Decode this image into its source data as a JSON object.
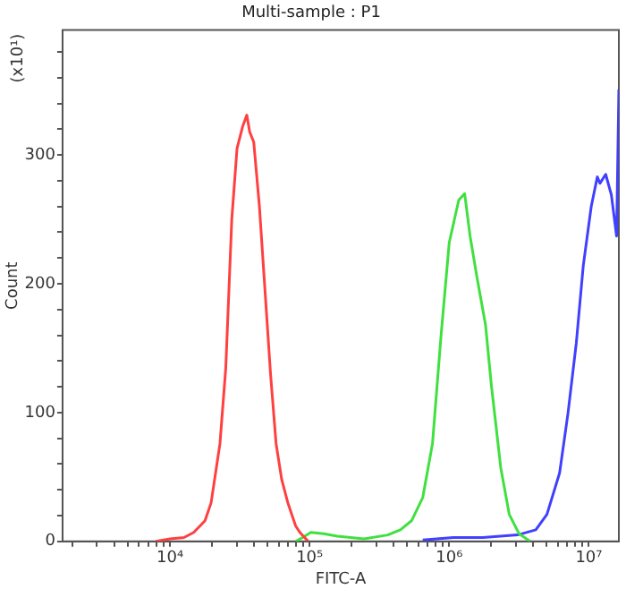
{
  "chart_data": {
    "type": "line",
    "title": "Multi-sample : P1",
    "xlabel": "FITC-A",
    "ylabel": "Count",
    "annotations": [
      "(x10¹)"
    ],
    "log": "x",
    "grid": false,
    "legend": false,
    "marker": "none",
    "line_style": "solid",
    "xlim": [
      1700,
      16400000
    ],
    "xticks": [
      {
        "value": 2000,
        "label": null
      },
      {
        "value": 3000,
        "label": null
      },
      {
        "value": 4000,
        "label": null
      },
      {
        "value": 5000,
        "label": null
      },
      {
        "value": 6000,
        "label": null
      },
      {
        "value": 7000,
        "label": null
      },
      {
        "value": 8000,
        "label": null
      },
      {
        "value": 9000,
        "label": null
      },
      {
        "value": 10000,
        "label": "10⁴"
      },
      {
        "value": 20000,
        "label": null
      },
      {
        "value": 30000,
        "label": null
      },
      {
        "value": 40000,
        "label": null
      },
      {
        "value": 50000,
        "label": null
      },
      {
        "value": 60000,
        "label": null
      },
      {
        "value": 70000,
        "label": null
      },
      {
        "value": 80000,
        "label": null
      },
      {
        "value": 90000,
        "label": null
      },
      {
        "value": 100000,
        "label": "10⁵"
      },
      {
        "value": 200000,
        "label": null
      },
      {
        "value": 300000,
        "label": null
      },
      {
        "value": 400000,
        "label": null
      },
      {
        "value": 500000,
        "label": null
      },
      {
        "value": 600000,
        "label": null
      },
      {
        "value": 700000,
        "label": null
      },
      {
        "value": 800000,
        "label": null
      },
      {
        "value": 900000,
        "label": null
      },
      {
        "value": 1000000,
        "label": "10⁶"
      },
      {
        "value": 2000000,
        "label": null
      },
      {
        "value": 3000000,
        "label": null
      },
      {
        "value": 4000000,
        "label": null
      },
      {
        "value": 5000000,
        "label": null
      },
      {
        "value": 6000000,
        "label": null
      },
      {
        "value": 7000000,
        "label": null
      },
      {
        "value": 8000000,
        "label": null
      },
      {
        "value": 9000000,
        "label": null
      },
      {
        "value": 10000000,
        "label": "10⁷"
      }
    ],
    "ylim": [
      0,
      397
    ],
    "yticks": [
      0,
      {
        "value": 20,
        "label": null
      },
      {
        "value": 40,
        "label": null
      },
      {
        "value": 60,
        "label": null
      },
      {
        "value": 80,
        "label": null
      },
      100,
      {
        "value": 120,
        "label": null
      },
      {
        "value": 140,
        "label": null
      },
      {
        "value": 160,
        "label": null
      },
      {
        "value": 180,
        "label": null
      },
      200,
      {
        "value": 220,
        "label": null
      },
      {
        "value": 240,
        "label": null
      },
      {
        "value": 260,
        "label": null
      },
      {
        "value": 280,
        "label": null
      },
      300,
      {
        "value": 320,
        "label": null
      },
      {
        "value": 340,
        "label": null
      },
      {
        "value": 360,
        "label": null
      },
      {
        "value": 380,
        "label": null
      }
    ],
    "series": [
      {
        "color": "#ff4040",
        "x": [
          7940,
          10000,
          12600,
          14800,
          17800,
          19700,
          22800,
          25100,
          27700,
          30200,
          33100,
          35500,
          37200,
          39800,
          43700,
          47300,
          52500,
          57500,
          63100,
          69800,
          79400,
          85100,
          97700
        ],
        "values": [
          0,
          2,
          3,
          7,
          16,
          30,
          76,
          135,
          250,
          305,
          322,
          331,
          318,
          310,
          260,
          204,
          130,
          76,
          48,
          30,
          12,
          7,
          0
        ]
      },
      {
        "color": "#40e040",
        "x": [
          79400,
          89100,
          102000,
          126000,
          158000,
          245000,
          363000,
          447000,
          537000,
          646000,
          759000,
          871000,
          1000000,
          1170000,
          1290000,
          1410000,
          1580000,
          1820000,
          2000000,
          2340000,
          2690000,
          3160000,
          3800000
        ],
        "values": [
          0,
          3,
          7,
          6,
          4,
          2,
          5,
          9,
          16,
          34,
          76,
          158,
          232,
          265,
          270,
          237,
          205,
          168,
          122,
          57,
          21,
          6,
          0
        ]
      },
      {
        "color": "#4040ff",
        "x": [
          646000,
          1070000,
          1740000,
          3090000,
          4170000,
          5010000,
          6170000,
          7080000,
          8130000,
          9120000,
          10400000,
          11500000,
          12000000,
          13200000,
          14500000,
          15800000,
          16400000
        ],
        "values": [
          1,
          3,
          3,
          5,
          9,
          21,
          53,
          99,
          154,
          214,
          260,
          283,
          278,
          285,
          269,
          237,
          351
        ]
      }
    ]
  }
}
